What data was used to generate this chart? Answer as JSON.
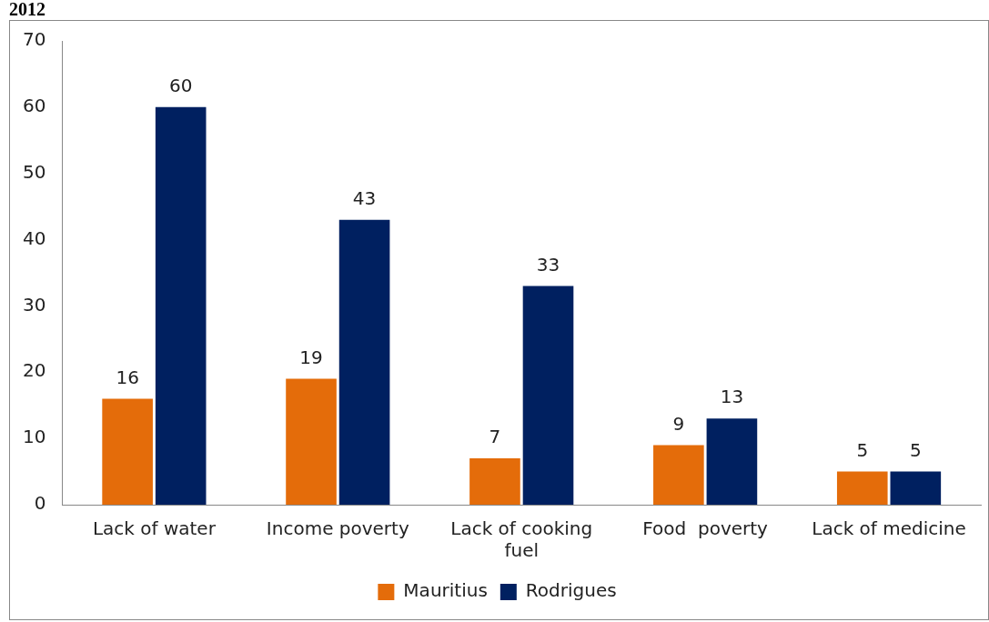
{
  "chart_data": {
    "type": "bar",
    "title": "2012",
    "categories": [
      "Lack of water",
      "Income poverty",
      "Lack of cooking fuel",
      "Food  poverty",
      "Lack of medicine"
    ],
    "series": [
      {
        "name": "Mauritius",
        "color": "#e46c0a",
        "values": [
          16,
          19,
          7,
          9,
          5
        ]
      },
      {
        "name": "Rodrigues",
        "color": "#002060",
        "values": [
          60,
          43,
          33,
          13,
          5
        ]
      }
    ],
    "ylim": [
      0,
      70
    ],
    "yticks": [
      0,
      10,
      20,
      30,
      40,
      50,
      60,
      70
    ],
    "grid": false,
    "legend": "bottom",
    "data_labels": true
  }
}
